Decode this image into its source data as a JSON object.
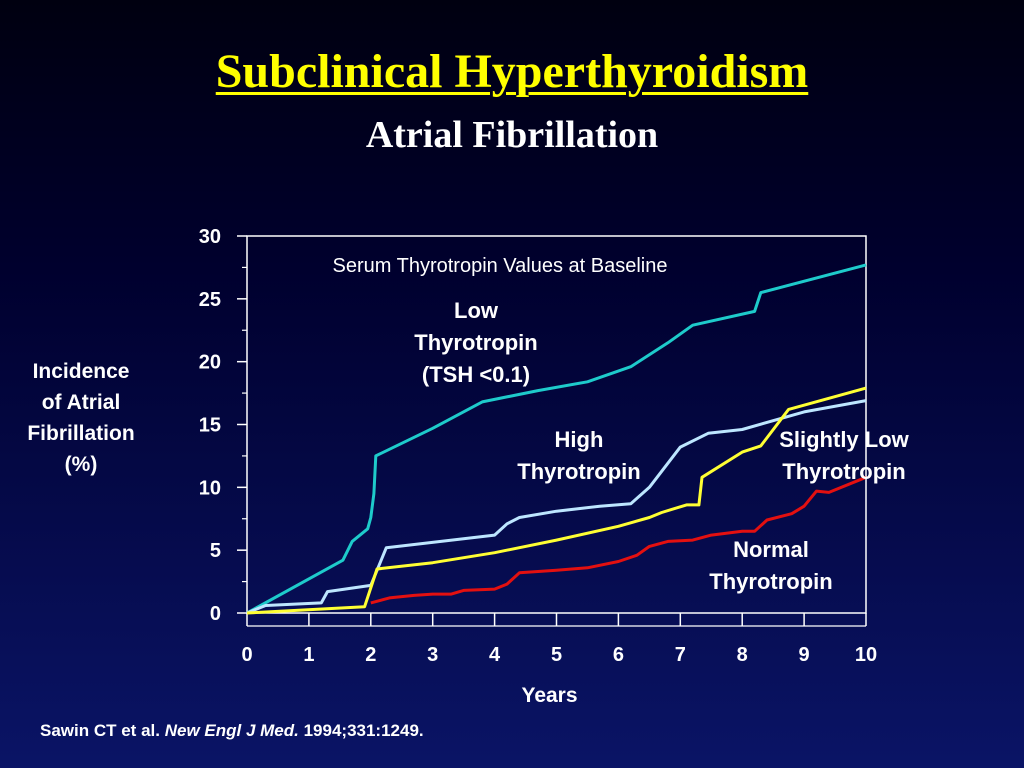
{
  "header": {
    "title": "Subclinical Hyperthyroidism",
    "subtitle": "Atrial Fibrillation"
  },
  "chart_data": {
    "type": "line",
    "title": "Serum Thyrotropin Values at Baseline",
    "xlabel": "Years",
    "ylabel_lines": [
      "Incidence",
      "of Atrial",
      "Fibrillation",
      "(%)"
    ],
    "xlim": [
      0,
      10
    ],
    "ylim": [
      0,
      30
    ],
    "xticks": [
      "0",
      "1",
      "2",
      "3",
      "4",
      "5",
      "6",
      "7",
      "8",
      "9",
      "10"
    ],
    "yticks": [
      "0",
      "5",
      "10",
      "15",
      "20",
      "25",
      "30"
    ],
    "grid": false,
    "series": [
      {
        "key": "low",
        "label_lines": [
          "Low",
          "Thyrotropin",
          "(TSH <0.1)"
        ],
        "color": "#1ecbcb",
        "points": [
          [
            0,
            0
          ],
          [
            1.55,
            4.2
          ],
          [
            1.7,
            5.7
          ],
          [
            1.95,
            6.7
          ],
          [
            2.0,
            7.6
          ],
          [
            2.05,
            9.5
          ],
          [
            2.08,
            12.5
          ],
          [
            3.0,
            14.7
          ],
          [
            3.8,
            16.8
          ],
          [
            4.7,
            17.7
          ],
          [
            5.5,
            18.4
          ],
          [
            6.2,
            19.6
          ],
          [
            6.8,
            21.5
          ],
          [
            7.2,
            22.9
          ],
          [
            8.2,
            24.0
          ],
          [
            8.3,
            25.5
          ],
          [
            10.0,
            27.7
          ]
        ]
      },
      {
        "key": "high",
        "label_lines": [
          "High",
          "Thyrotropin"
        ],
        "color": "#bde6ff",
        "points": [
          [
            0,
            0
          ],
          [
            0.3,
            0.6
          ],
          [
            1.2,
            0.8
          ],
          [
            1.3,
            1.7
          ],
          [
            2.0,
            2.2
          ],
          [
            2.25,
            5.2
          ],
          [
            4.0,
            6.2
          ],
          [
            4.2,
            7.1
          ],
          [
            4.4,
            7.6
          ],
          [
            5.0,
            8.1
          ],
          [
            5.7,
            8.5
          ],
          [
            6.2,
            8.7
          ],
          [
            6.5,
            10.0
          ],
          [
            7.0,
            13.2
          ],
          [
            7.45,
            14.3
          ],
          [
            8.0,
            14.6
          ],
          [
            9.0,
            16.0
          ],
          [
            10.0,
            16.9
          ]
        ]
      },
      {
        "key": "slightly-low",
        "label_lines": [
          "Slightly Low",
          "Thyrotropin"
        ],
        "color": "#ffff33",
        "points": [
          [
            0,
            0
          ],
          [
            1.9,
            0.5
          ],
          [
            2.1,
            3.5
          ],
          [
            3.0,
            4.0
          ],
          [
            4.0,
            4.8
          ],
          [
            5.0,
            5.8
          ],
          [
            6.0,
            6.9
          ],
          [
            6.5,
            7.6
          ],
          [
            6.7,
            8.0
          ],
          [
            7.1,
            8.6
          ],
          [
            7.3,
            8.6
          ],
          [
            7.35,
            10.8
          ],
          [
            8.0,
            12.8
          ],
          [
            8.3,
            13.3
          ],
          [
            8.75,
            16.2
          ],
          [
            10.0,
            17.9
          ]
        ]
      },
      {
        "key": "normal",
        "label_lines": [
          "Normal",
          "Thyrotropin"
        ],
        "color": "#e31010",
        "points": [
          [
            2.0,
            0.8
          ],
          [
            2.3,
            1.2
          ],
          [
            2.7,
            1.4
          ],
          [
            3.0,
            1.5
          ],
          [
            3.3,
            1.5
          ],
          [
            3.5,
            1.8
          ],
          [
            4.0,
            1.9
          ],
          [
            4.2,
            2.3
          ],
          [
            4.4,
            3.2
          ],
          [
            5.0,
            3.4
          ],
          [
            5.5,
            3.6
          ],
          [
            6.0,
            4.1
          ],
          [
            6.3,
            4.6
          ],
          [
            6.5,
            5.3
          ],
          [
            6.8,
            5.7
          ],
          [
            7.2,
            5.8
          ],
          [
            7.5,
            6.2
          ],
          [
            8.0,
            6.5
          ],
          [
            8.2,
            6.5
          ],
          [
            8.4,
            7.4
          ],
          [
            8.8,
            7.9
          ],
          [
            9.0,
            8.5
          ],
          [
            9.2,
            9.7
          ],
          [
            9.4,
            9.6
          ],
          [
            10.0,
            10.8
          ]
        ]
      }
    ]
  },
  "citation": {
    "authors": "Sawin CT et al.",
    "journal": "New Engl J Med.",
    "ref": "1994;331:1249."
  }
}
